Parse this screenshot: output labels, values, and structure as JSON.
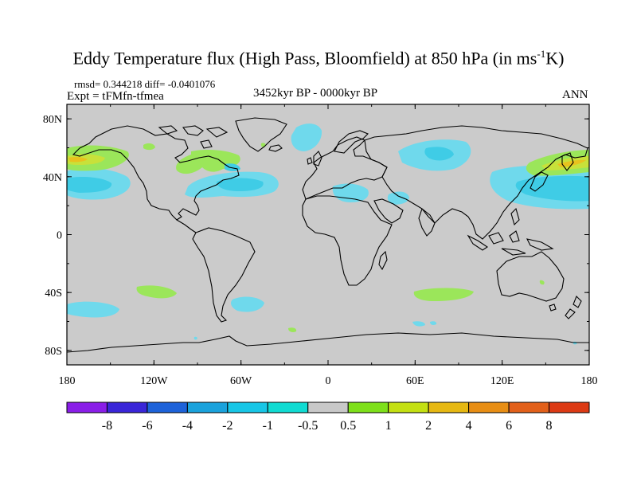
{
  "title": "Eddy Temperature flux (High Pass, Bloomfield) at 850 hPa (in ms",
  "title_sup": "-1",
  "title_end": "K)",
  "stats": "rmsd= 0.344218  diff= -0.0401076",
  "expt": "Expt = tFMfn-tfmea",
  "period": "3452kyr BP - 0000kyr BP",
  "season": "ANN",
  "chart_data": {
    "type": "heatmap",
    "title": "Eddy Temperature flux (High Pass, Bloomfield) at 850 hPa (in ms-1K)",
    "projection": "cylindrical equidistant",
    "xlim": [
      -180,
      180
    ],
    "ylim": [
      -90,
      90
    ],
    "x_ticks": [
      {
        "value": -180,
        "label": "180"
      },
      {
        "value": -120,
        "label": "120W"
      },
      {
        "value": -60,
        "label": "60W"
      },
      {
        "value": 0,
        "label": "0"
      },
      {
        "value": 60,
        "label": "60E"
      },
      {
        "value": 120,
        "label": "120E"
      },
      {
        "value": 180,
        "label": "180"
      }
    ],
    "y_ticks": [
      {
        "value": 80,
        "label": "80N"
      },
      {
        "value": 40,
        "label": "40N"
      },
      {
        "value": 0,
        "label": "0"
      },
      {
        "value": -40,
        "label": "40S"
      },
      {
        "value": -80,
        "label": "80S"
      }
    ],
    "colorbar": {
      "labels": [
        "-8",
        "-6",
        "-4",
        "-2",
        "-1",
        "-0.5",
        "0.5",
        "1",
        "2",
        "4",
        "6",
        "8"
      ],
      "colors": [
        "#8a1ee8",
        "#3a26d8",
        "#1d62d9",
        "#1aa2dc",
        "#17c6e6",
        "#10dbd2",
        "#c8c8c8",
        "#7ee01a",
        "#c4e012",
        "#e6b812",
        "#e88e14",
        "#e2601a",
        "#dc3a14"
      ]
    },
    "anomalies": [
      {
        "lon": -170,
        "lat": 35,
        "value": -1
      },
      {
        "lon": -160,
        "lat": 50,
        "value": 1
      },
      {
        "lon": -130,
        "lat": 47,
        "value": 0.6
      },
      {
        "lon": -80,
        "lat": 46,
        "value": 1
      },
      {
        "lon": -60,
        "lat": 35,
        "value": -1
      },
      {
        "lon": -15,
        "lat": 75,
        "value": -1
      },
      {
        "lon": 10,
        "lat": 32,
        "value": -1
      },
      {
        "lon": 35,
        "lat": 30,
        "value": -1
      },
      {
        "lon": 70,
        "lat": 55,
        "value": -1
      },
      {
        "lon": 165,
        "lat": 35,
        "value": -1
      },
      {
        "lon": 160,
        "lat": 45,
        "value": 1
      },
      {
        "lon": -120,
        "lat": -35,
        "value": 1
      },
      {
        "lon": -160,
        "lat": -48,
        "value": -1
      },
      {
        "lon": -55,
        "lat": -48,
        "value": -1
      },
      {
        "lon": 65,
        "lat": -38,
        "value": 1
      },
      {
        "lon": 20,
        "lat": -60,
        "value": 0.6
      },
      {
        "lon": 60,
        "lat": -58,
        "value": -0.7
      }
    ]
  }
}
